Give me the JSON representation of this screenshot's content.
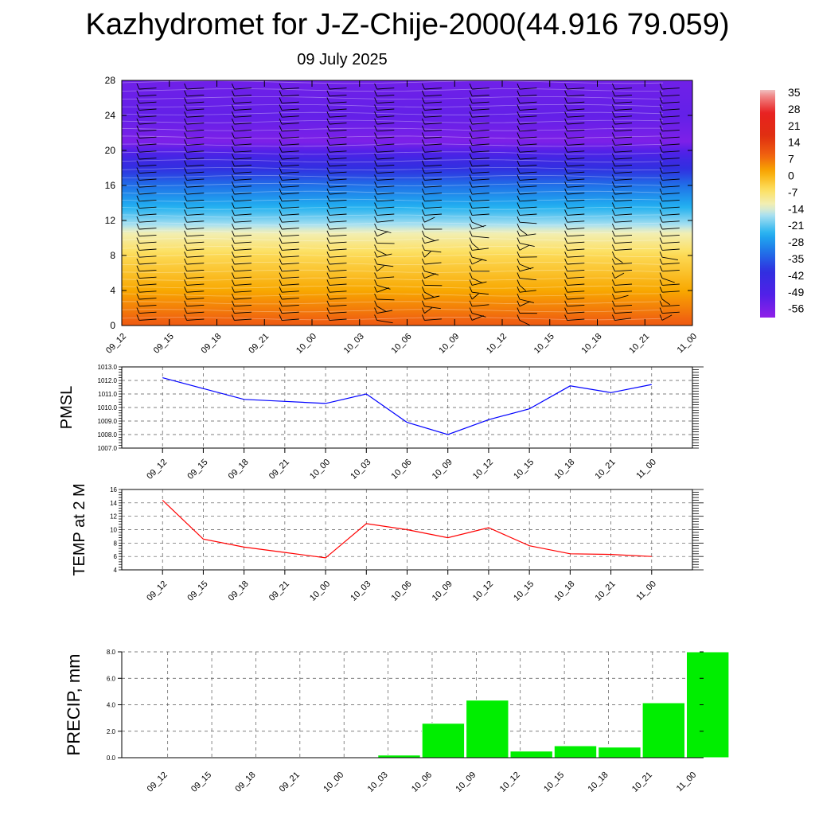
{
  "title": "Kazhydromet for J-Z-Chije-2000(44.916 79.059)",
  "subtitle": "09 July 2025",
  "chart_data": [
    {
      "type": "heatmap",
      "name": "vertical-cross-section",
      "xlabel": "",
      "ylabel": "",
      "categories": [
        "09_12",
        "09_15",
        "09_18",
        "09_21",
        "10_00",
        "10_03",
        "10_06",
        "10_09",
        "10_12",
        "10_15",
        "10_18",
        "10_21",
        "11_00"
      ],
      "y_ticks": [
        0,
        4,
        8,
        12,
        16,
        20,
        24,
        28
      ],
      "ylim": [
        0,
        28
      ],
      "colorbar": {
        "labels": [
          "35",
          "28",
          "21",
          "14",
          "7",
          "0",
          "-7",
          "-14",
          "-21",
          "-28",
          "-35",
          "-42",
          "-49",
          "-56"
        ],
        "range": [
          -60,
          38
        ],
        "stops": [
          {
            "v": 38,
            "c": "#f0c0c0"
          },
          {
            "v": 35,
            "c": "#f08080"
          },
          {
            "v": 28,
            "c": "#e82020"
          },
          {
            "v": 18,
            "c": "#e03010"
          },
          {
            "v": 10,
            "c": "#f06010"
          },
          {
            "v": 3,
            "c": "#f8a800"
          },
          {
            "v": -5,
            "c": "#fde060"
          },
          {
            "v": -12,
            "c": "#f0f0c0"
          },
          {
            "v": -16,
            "c": "#a8e0f0"
          },
          {
            "v": -24,
            "c": "#20b0f0"
          },
          {
            "v": -32,
            "c": "#2070e8"
          },
          {
            "v": -40,
            "c": "#3030e0"
          },
          {
            "v": -50,
            "c": "#5020e8"
          },
          {
            "v": -60,
            "c": "#9020e8"
          }
        ]
      },
      "profile": [
        {
          "h": 0,
          "t": 11
        },
        {
          "h": 4,
          "t": 3
        },
        {
          "h": 8,
          "t": -4
        },
        {
          "h": 10.5,
          "t": -11
        },
        {
          "h": 11.5,
          "t": -16
        },
        {
          "h": 13,
          "t": -22
        },
        {
          "h": 16,
          "t": -32
        },
        {
          "h": 19,
          "t": -45
        },
        {
          "h": 21,
          "t": -57
        },
        {
          "h": 24,
          "t": -53
        },
        {
          "h": 28,
          "t": -55
        }
      ]
    },
    {
      "type": "line",
      "name": "pmsl",
      "ylabel": "PMSL",
      "categories": [
        "09_12",
        "09_15",
        "09_18",
        "09_21",
        "10_00",
        "10_03",
        "10_06",
        "10_09",
        "10_12",
        "10_15",
        "10_18",
        "10_21",
        "11_00"
      ],
      "series": [
        {
          "color": "#0000ff",
          "values": [
            1012.2,
            1011.4,
            1010.6,
            1010.45,
            1010.3,
            1011.0,
            1008.9,
            1008.0,
            1009.1,
            1009.9,
            1011.6,
            1011.1,
            1011.7
          ]
        }
      ],
      "ylim": [
        1007.0,
        1013.0
      ],
      "y_ticks": [
        "1007.0",
        "1008.0",
        "1009.0",
        "1010.0",
        "1011.0",
        "1012.0",
        "1013.0"
      ],
      "grid": true
    },
    {
      "type": "line",
      "name": "temp-2m",
      "ylabel": "TEMP at 2 M",
      "categories": [
        "09_12",
        "09_15",
        "09_18",
        "09_21",
        "10_00",
        "10_03",
        "10_06",
        "10_09",
        "10_12",
        "10_15",
        "10_18",
        "10_21",
        "11_00"
      ],
      "series": [
        {
          "color": "#ff0000",
          "values": [
            14.4,
            8.6,
            7.4,
            6.6,
            5.8,
            10.9,
            10.0,
            8.8,
            10.3,
            7.6,
            6.4,
            6.3,
            6.0
          ]
        }
      ],
      "ylim": [
        4,
        16
      ],
      "y_ticks": [
        "4",
        "6",
        "8",
        "10",
        "12",
        "14",
        "16"
      ],
      "grid": true
    },
    {
      "type": "bar",
      "name": "precip",
      "ylabel": "PRECIP, mm",
      "categories": [
        "09_12",
        "09_15",
        "09_18",
        "09_21",
        "10_00",
        "10_03",
        "10_06",
        "10_09",
        "10_12",
        "10_15",
        "10_18",
        "10_21",
        "11_00"
      ],
      "values": [
        0.0,
        0.0,
        0.0,
        0.0,
        0.0,
        0.2,
        2.6,
        4.35,
        0.5,
        0.9,
        0.8,
        4.15,
        8.0
      ],
      "color": "#00ee00",
      "ylim": [
        0,
        8.0
      ],
      "y_ticks": [
        "0.0",
        "2.0",
        "4.0",
        "6.0",
        "8.0"
      ],
      "grid": true
    }
  ]
}
